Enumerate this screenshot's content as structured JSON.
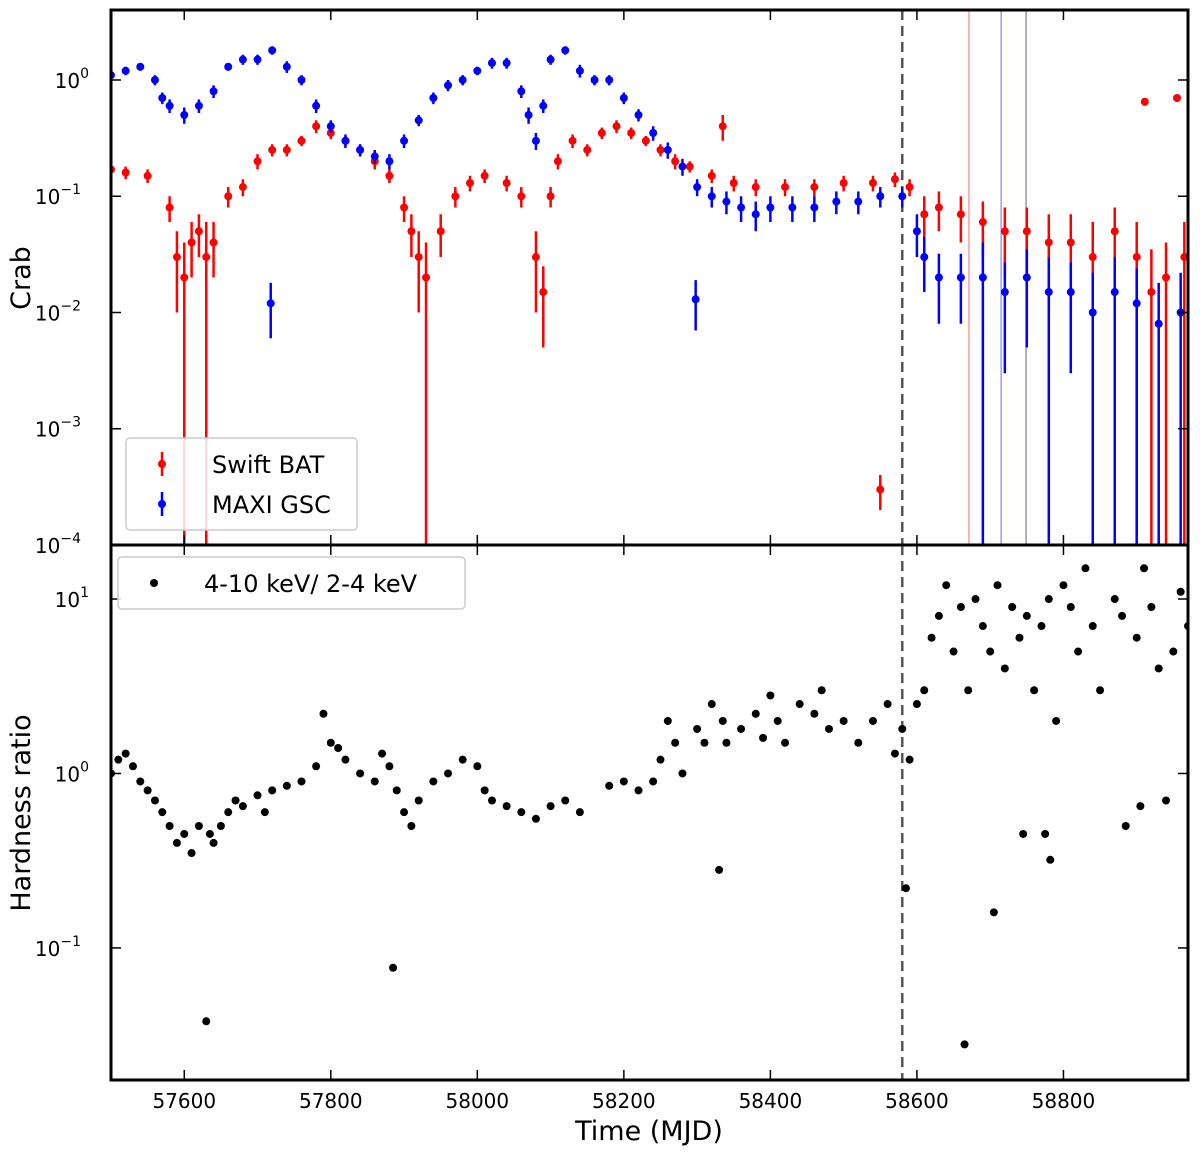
{
  "chart_data": [
    {
      "type": "scatter",
      "ylabel": "Crab",
      "log_y": true,
      "ylim": [
        0.0001,
        4
      ],
      "yticks": [
        {
          "value": 0.0001,
          "label": "10",
          "exponent": "−4"
        },
        {
          "value": 0.001,
          "label": "10",
          "exponent": "−3"
        },
        {
          "value": 0.01,
          "label": "10",
          "exponent": "−2"
        },
        {
          "value": 0.1,
          "label": "10",
          "exponent": "−1"
        },
        {
          "value": 1,
          "label": "10",
          "exponent": "0"
        }
      ],
      "legend": "lower left",
      "vlines": [
        {
          "x": 58580,
          "color": "#555555",
          "dashed": true
        },
        {
          "x": 58671,
          "color": "#ff9999",
          "dashed": false
        },
        {
          "x": 58715,
          "color": "#9999ff",
          "dashed": false
        },
        {
          "x": 58749,
          "color": "#999999",
          "dashed": false
        }
      ],
      "series": [
        {
          "name": "Swift BAT",
          "color": "#ff0000",
          "x": [
            57500,
            57520,
            57550,
            57580,
            57590,
            57600,
            57610,
            57620,
            57630,
            57640,
            57660,
            57680,
            57700,
            57720,
            57740,
            57760,
            57780,
            57800,
            57820,
            57840,
            57860,
            57880,
            57900,
            57910,
            57920,
            57930,
            57950,
            57970,
            57990,
            58010,
            58040,
            58060,
            58080,
            58090,
            58100,
            58110,
            58130,
            58150,
            58170,
            58190,
            58210,
            58230,
            58250,
            58270,
            58290,
            58320,
            58335,
            58350,
            58380,
            58420,
            58460,
            58500,
            58540,
            58550,
            58570,
            58590,
            58610,
            58630,
            58660,
            58690,
            58720,
            58750,
            58780,
            58810,
            58840,
            58870,
            58900,
            58911,
            58920,
            58940,
            58955,
            58965
          ],
          "values": [
            0.17,
            0.16,
            0.15,
            0.08,
            0.03,
            0.02,
            0.04,
            0.05,
            0.03,
            0.04,
            0.1,
            0.12,
            0.2,
            0.25,
            0.25,
            0.3,
            0.4,
            0.35,
            0.3,
            0.25,
            0.2,
            0.15,
            0.08,
            0.05,
            0.03,
            0.02,
            0.05,
            0.1,
            0.13,
            0.15,
            0.13,
            0.1,
            0.03,
            0.015,
            0.1,
            0.2,
            0.3,
            0.25,
            0.35,
            0.4,
            0.35,
            0.3,
            0.25,
            0.2,
            0.18,
            0.15,
            0.4,
            0.13,
            0.12,
            0.12,
            0.12,
            0.13,
            0.13,
            0.0003,
            0.14,
            0.12,
            0.07,
            0.08,
            0.07,
            0.06,
            0.05,
            0.05,
            0.04,
            0.04,
            0.03,
            0.05,
            0.03,
            0.65,
            0.015,
            0.02,
            0.7,
            0.03
          ],
          "errors": [
            0.02,
            0.02,
            0.02,
            0.02,
            0.02,
            0.02,
            0.02,
            0.02,
            0.03,
            0.02,
            0.02,
            0.02,
            0.03,
            0.03,
            0.03,
            0.03,
            0.05,
            0.04,
            0.03,
            0.03,
            0.03,
            0.02,
            0.02,
            0.02,
            0.02,
            0.02,
            0.02,
            0.02,
            0.02,
            0.02,
            0.02,
            0.02,
            0.02,
            0.01,
            0.02,
            0.03,
            0.04,
            0.03,
            0.04,
            0.05,
            0.04,
            0.03,
            0.03,
            0.03,
            0.02,
            0.02,
            0.1,
            0.02,
            0.02,
            0.02,
            0.02,
            0.02,
            0.02,
            0.0001,
            0.02,
            0.02,
            0.03,
            0.03,
            0.03,
            0.03,
            0.03,
            0.03,
            0.03,
            0.03,
            0.03,
            0.03,
            0.03,
            0.05,
            0.02,
            0.02,
            0.05,
            0.03
          ]
        },
        {
          "name": "MAXI GSC",
          "color": "#0000ff",
          "x": [
            57500,
            57520,
            57540,
            57560,
            57570,
            57580,
            57600,
            57620,
            57640,
            57660,
            57680,
            57700,
            57718,
            57720,
            57740,
            57760,
            57780,
            57800,
            57820,
            57840,
            57860,
            57880,
            57900,
            57920,
            57940,
            57960,
            57980,
            58000,
            58020,
            58040,
            58060,
            58070,
            58080,
            58090,
            58100,
            58120,
            58140,
            58160,
            58180,
            58200,
            58220,
            58240,
            58260,
            58280,
            58298,
            58300,
            58320,
            58340,
            58360,
            58380,
            58400,
            58430,
            58460,
            58490,
            58520,
            58550,
            58580,
            58600,
            58610,
            58630,
            58660,
            58690,
            58720,
            58750,
            58780,
            58810,
            58840,
            58870,
            58900,
            58930,
            58960,
            58980
          ],
          "values": [
            1.1,
            1.2,
            1.3,
            1.0,
            0.7,
            0.6,
            0.5,
            0.6,
            0.8,
            1.3,
            1.5,
            1.5,
            0.012,
            1.8,
            1.3,
            1.0,
            0.6,
            0.4,
            0.3,
            0.25,
            0.22,
            0.2,
            0.3,
            0.45,
            0.7,
            0.9,
            1.0,
            1.2,
            1.4,
            1.4,
            0.8,
            0.5,
            0.3,
            0.6,
            1.5,
            1.8,
            1.2,
            1.0,
            1.0,
            0.7,
            0.5,
            0.35,
            0.25,
            0.18,
            0.013,
            0.12,
            0.1,
            0.09,
            0.08,
            0.07,
            0.08,
            0.08,
            0.08,
            0.09,
            0.09,
            0.1,
            0.1,
            0.05,
            0.03,
            0.02,
            0.02,
            0.02,
            0.015,
            0.02,
            0.015,
            0.015,
            0.01,
            0.015,
            0.012,
            0.008,
            0.01,
            0.005
          ],
          "errors": [
            0.1,
            0.1,
            0.1,
            0.1,
            0.08,
            0.08,
            0.08,
            0.08,
            0.1,
            0.1,
            0.15,
            0.15,
            0.006,
            0.15,
            0.15,
            0.1,
            0.08,
            0.05,
            0.04,
            0.03,
            0.03,
            0.03,
            0.04,
            0.05,
            0.08,
            0.1,
            0.1,
            0.1,
            0.15,
            0.15,
            0.1,
            0.08,
            0.05,
            0.08,
            0.15,
            0.15,
            0.15,
            0.1,
            0.1,
            0.08,
            0.06,
            0.05,
            0.04,
            0.03,
            0.006,
            0.02,
            0.02,
            0.02,
            0.02,
            0.02,
            0.02,
            0.02,
            0.02,
            0.02,
            0.02,
            0.02,
            0.02,
            0.02,
            0.015,
            0.012,
            0.012,
            0.02,
            0.012,
            0.015,
            0.015,
            0.012,
            0.012,
            0.015,
            0.012,
            0.01,
            0.012,
            0.006
          ]
        }
      ]
    },
    {
      "type": "scatter",
      "ylabel": "Hardness ratio",
      "xlabel": "Time (MJD)",
      "log_y": true,
      "xlim": [
        57500,
        58970
      ],
      "xticks": [
        57600,
        57800,
        58000,
        58200,
        58400,
        58600,
        58800
      ],
      "ylim": [
        0.0175,
        20.4
      ],
      "yticks": [
        {
          "value": 0.1,
          "label": "10",
          "exponent": "−1"
        },
        {
          "value": 1,
          "label": "10",
          "exponent": "0"
        },
        {
          "value": 10,
          "label": "10",
          "exponent": "1"
        }
      ],
      "legend": "upper left",
      "vlines": [
        {
          "x": 58580,
          "color": "#555555",
          "dashed": true
        }
      ],
      "series": [
        {
          "name": "4-10 keV/ 2-4 keV",
          "color": "#000000",
          "x": [
            57500,
            57510,
            57520,
            57530,
            57540,
            57550,
            57560,
            57570,
            57580,
            57590,
            57600,
            57610,
            57620,
            57630,
            57635,
            57640,
            57650,
            57660,
            57670,
            57680,
            57700,
            57710,
            57720,
            57740,
            57760,
            57780,
            57790,
            57800,
            57810,
            57820,
            57840,
            57860,
            57870,
            57880,
            57885,
            57890,
            57900,
            57910,
            57920,
            57940,
            57960,
            57980,
            58000,
            58010,
            58020,
            58040,
            58060,
            58080,
            58100,
            58120,
            58140,
            58180,
            58200,
            58220,
            58240,
            58250,
            58260,
            58270,
            58280,
            58300,
            58310,
            58320,
            58330,
            58335,
            58340,
            58360,
            58380,
            58390,
            58400,
            58410,
            58420,
            58440,
            58460,
            58470,
            58480,
            58500,
            58520,
            58540,
            58560,
            58570,
            58580,
            58585,
            58590,
            58600,
            58610,
            58620,
            58630,
            58640,
            58650,
            58660,
            58665,
            58670,
            58680,
            58690,
            58700,
            58705,
            58710,
            58720,
            58730,
            58740,
            58745,
            58750,
            58760,
            58770,
            58775,
            58780,
            58782,
            58790,
            58800,
            58810,
            58820,
            58830,
            58840,
            58850,
            58870,
            58880,
            58885,
            58900,
            58905,
            58910,
            58920,
            58930,
            58940,
            58950,
            58960,
            58970,
            58980
          ],
          "values": [
            1.0,
            1.2,
            1.3,
            1.1,
            0.9,
            0.8,
            0.7,
            0.6,
            0.5,
            0.4,
            0.45,
            0.35,
            0.5,
            0.038,
            0.45,
            0.4,
            0.5,
            0.6,
            0.7,
            0.65,
            0.75,
            0.6,
            0.8,
            0.85,
            0.9,
            1.1,
            2.2,
            1.5,
            1.4,
            1.2,
            1.0,
            0.9,
            1.3,
            1.1,
            0.077,
            0.8,
            0.6,
            0.5,
            0.7,
            0.9,
            1.0,
            1.2,
            1.1,
            0.8,
            0.7,
            0.65,
            0.6,
            0.55,
            0.65,
            0.7,
            0.6,
            0.85,
            0.9,
            0.8,
            0.9,
            1.2,
            2.0,
            1.5,
            1.0,
            1.8,
            1.5,
            2.5,
            0.28,
            2.0,
            1.5,
            1.8,
            2.2,
            1.6,
            2.8,
            2.0,
            1.5,
            2.5,
            2.2,
            3.0,
            1.8,
            2.0,
            1.5,
            2.0,
            2.5,
            1.3,
            1.8,
            0.22,
            1.2,
            2.5,
            3.0,
            6.0,
            8.0,
            12,
            5.0,
            9.0,
            0.028,
            3.0,
            10,
            7,
            5,
            0.16,
            12,
            4,
            9,
            6,
            0.45,
            8,
            3,
            7,
            0.45,
            10,
            0.32,
            2,
            12,
            9,
            5,
            15,
            7,
            3,
            10,
            8,
            0.5,
            6,
            0.65,
            15,
            9,
            4,
            0.7,
            5,
            11,
            7,
            4
          ]
        }
      ]
    }
  ]
}
